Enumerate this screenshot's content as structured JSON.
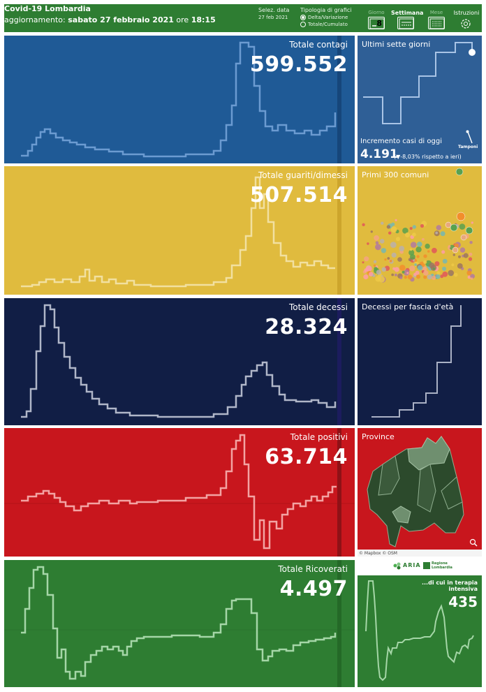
{
  "header": {
    "title": "Covid-19 Lombardia",
    "update_prefix": "aggiornamento:",
    "update_date": "sabato 27 febbraio 2021",
    "update_mid": "ore",
    "update_time": "18:15",
    "select_date_label": "Selez. data",
    "select_date_value": "27 feb 2021",
    "chart_type_label": "Tipologia di grafici",
    "chart_type_options": [
      "Delta/Variazione",
      "Totale/Cumulato"
    ],
    "nav": [
      {
        "label": "Giorno",
        "icon": "calendar-day-icon",
        "value": "8"
      },
      {
        "label": "Settimana",
        "icon": "calendar-week-icon"
      },
      {
        "label": "Mese",
        "icon": "calendar-month-icon"
      },
      {
        "label": "Istruzioni",
        "icon": "gear-icon"
      }
    ]
  },
  "panels": {
    "contagi": {
      "title": "Totale contagi",
      "value": "599.552",
      "color": "#1f5a96"
    },
    "guariti": {
      "title": "Totale guariti/dimessi",
      "value": "507.514",
      "color": "#e0bb3e"
    },
    "decessi": {
      "title": "Totale decessi",
      "value": "28.324",
      "color": "#111e45"
    },
    "positivi": {
      "title": "Totale positivi",
      "value": "63.714",
      "color": "#c8161d"
    },
    "ricoverati": {
      "title": "Totale Ricoverati",
      "value": "4.497",
      "color": "#2e7d32"
    }
  },
  "side": {
    "seven_days": {
      "title": "Ultimi sette giorni",
      "increment_label": "Incremento casi di oggi",
      "increment_value": "4.191",
      "change_text": "(▼-8,03% rispetto a  ieri)",
      "tamponi_label": "Tamponi"
    },
    "comuni": {
      "title": "Primi 300 comuni"
    },
    "fascia": {
      "title": "Decessi per fascia d'età"
    },
    "province": {
      "title": "Province",
      "credits": "© Mapbox © OSM"
    },
    "intensiva": {
      "title": "...di cui in terapia intensiva",
      "value": "435"
    },
    "logos": {
      "aria": "ARIA",
      "regione": "Regione Lombardia"
    }
  }
}
